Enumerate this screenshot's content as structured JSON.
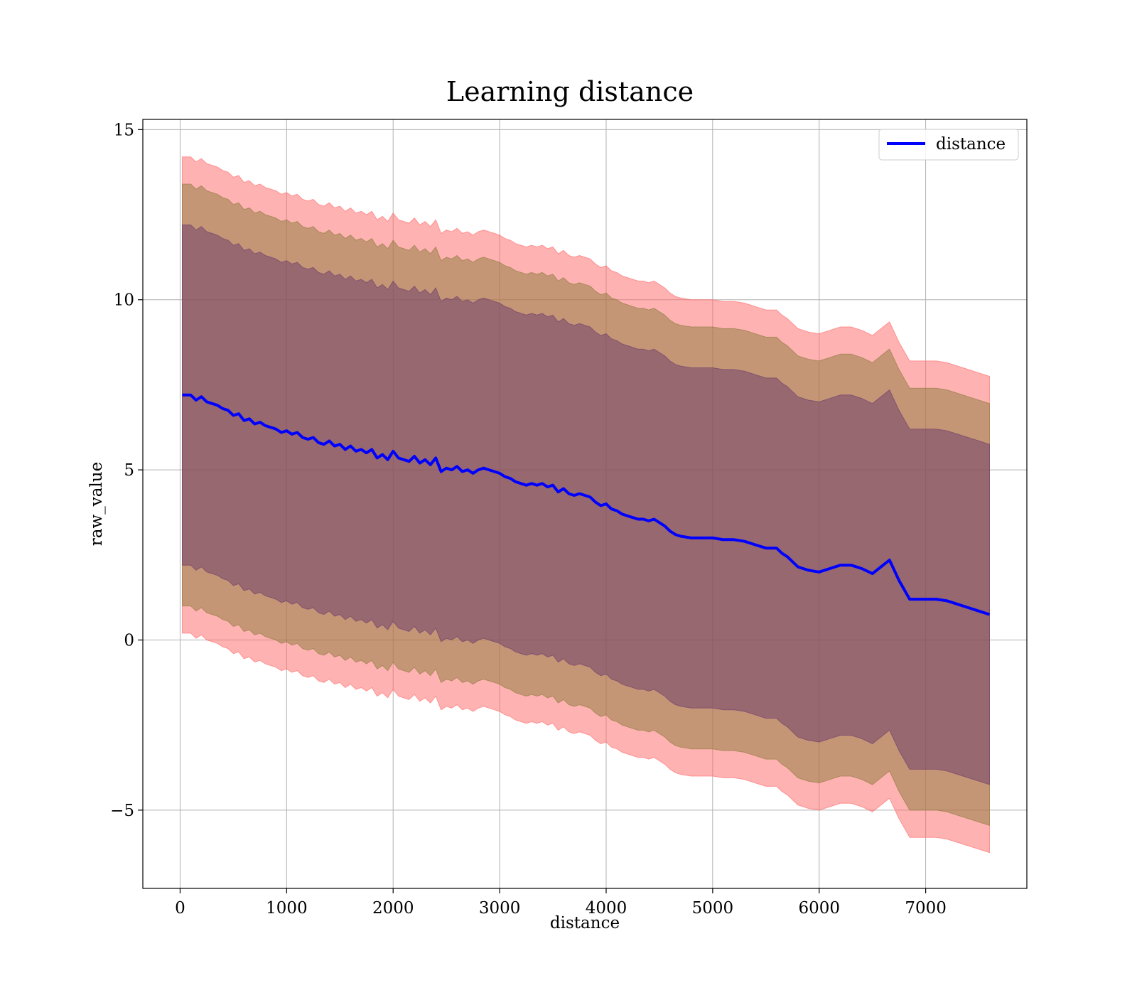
{
  "chart_data": {
    "type": "line",
    "title": "Learning distance",
    "xlabel": "distance",
    "ylabel": "raw_value",
    "xlim": [
      -350,
      7950
    ],
    "ylim": [
      -7.3,
      15.3
    ],
    "grid": true,
    "legend_position": "top-right",
    "x_ticks": [
      0,
      1000,
      2000,
      3000,
      4000,
      5000,
      6000,
      7000
    ],
    "x_tick_labels": [
      "0",
      "1000",
      "2000",
      "3000",
      "4000",
      "5000",
      "6000",
      "7000"
    ],
    "y_ticks": [
      -5,
      0,
      5,
      10,
      15
    ],
    "y_tick_labels": [
      "−5",
      "0",
      "5",
      "10",
      "15"
    ],
    "colors": {
      "line": "#0000ff",
      "band_outer": "#ff6666",
      "band_middle": "#8b7a3a",
      "band_inner": "#6a3a6a"
    },
    "band_offsets": {
      "outer": 7.0,
      "middle": 6.2,
      "inner": 5.0
    },
    "series": [
      {
        "name": "distance",
        "x": [
          20,
          100,
          150,
          200,
          250,
          300,
          350,
          400,
          450,
          500,
          550,
          600,
          650,
          700,
          750,
          800,
          850,
          900,
          950,
          1000,
          1050,
          1100,
          1150,
          1200,
          1250,
          1300,
          1350,
          1400,
          1450,
          1500,
          1550,
          1600,
          1650,
          1700,
          1750,
          1800,
          1850,
          1900,
          1950,
          2000,
          2050,
          2100,
          2150,
          2200,
          2250,
          2300,
          2350,
          2400,
          2450,
          2500,
          2550,
          2600,
          2650,
          2700,
          2750,
          2800,
          2850,
          2900,
          2950,
          3000,
          3050,
          3100,
          3150,
          3200,
          3250,
          3300,
          3350,
          3400,
          3450,
          3500,
          3550,
          3600,
          3650,
          3700,
          3750,
          3800,
          3850,
          3900,
          3950,
          4000,
          4050,
          4100,
          4150,
          4200,
          4250,
          4300,
          4350,
          4400,
          4450,
          4500,
          4550,
          4600,
          4650,
          4700,
          4800,
          4900,
          5000,
          5100,
          5200,
          5300,
          5400,
          5500,
          5600,
          5650,
          5700,
          5800,
          5900,
          6000,
          6100,
          6200,
          6300,
          6400,
          6500,
          6600,
          6660,
          6750,
          6850,
          6950,
          7050,
          7100,
          7200,
          7300,
          7400,
          7500,
          7600
        ],
        "y": [
          7.2,
          7.2,
          7.05,
          7.15,
          7.0,
          6.95,
          6.9,
          6.8,
          6.75,
          6.6,
          6.65,
          6.45,
          6.5,
          6.35,
          6.4,
          6.3,
          6.25,
          6.2,
          6.1,
          6.15,
          6.05,
          6.1,
          5.95,
          5.9,
          5.95,
          5.8,
          5.75,
          5.85,
          5.7,
          5.75,
          5.6,
          5.7,
          5.55,
          5.6,
          5.5,
          5.6,
          5.35,
          5.45,
          5.3,
          5.55,
          5.35,
          5.3,
          5.25,
          5.4,
          5.2,
          5.3,
          5.15,
          5.35,
          4.95,
          5.05,
          5.0,
          5.1,
          4.95,
          5.0,
          4.9,
          5.0,
          5.05,
          5.0,
          4.95,
          4.9,
          4.8,
          4.75,
          4.65,
          4.6,
          4.55,
          4.6,
          4.55,
          4.6,
          4.5,
          4.55,
          4.35,
          4.45,
          4.3,
          4.25,
          4.3,
          4.25,
          4.2,
          4.05,
          3.95,
          4.0,
          3.85,
          3.8,
          3.7,
          3.65,
          3.6,
          3.55,
          3.55,
          3.5,
          3.55,
          3.45,
          3.35,
          3.2,
          3.1,
          3.05,
          3.0,
          3.0,
          3.0,
          2.95,
          2.95,
          2.9,
          2.8,
          2.7,
          2.7,
          2.55,
          2.45,
          2.15,
          2.05,
          2.0,
          2.1,
          2.2,
          2.2,
          2.1,
          1.95,
          2.2,
          2.35,
          1.75,
          1.2,
          1.2,
          1.2,
          1.2,
          1.15,
          1.05,
          0.95,
          0.85,
          0.75
        ]
      }
    ]
  }
}
